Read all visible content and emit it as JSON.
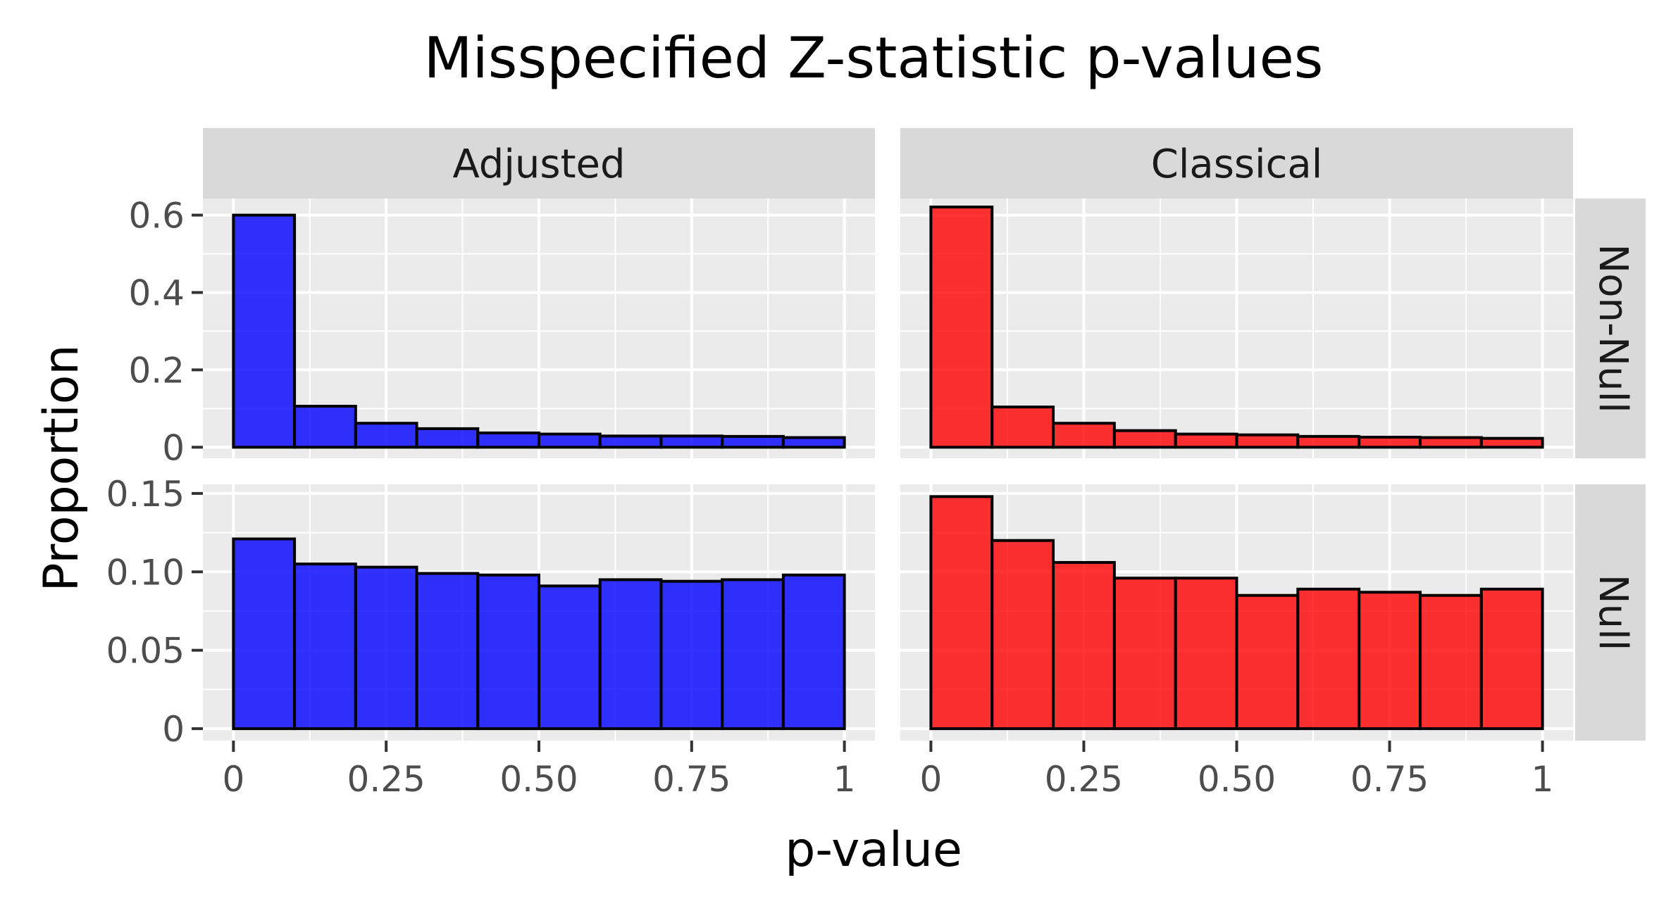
{
  "chart_data": {
    "type": "bar",
    "title": "Misspecified Z-statistic p-values",
    "xlabel": "p-value",
    "ylabel": "Proportion",
    "bin_edges": [
      0,
      0.1,
      0.2,
      0.3,
      0.4,
      0.5,
      0.6,
      0.7,
      0.8,
      0.9,
      1.0
    ],
    "xlim": [
      -0.05,
      1.05
    ],
    "x_ticks": [
      0,
      0.25,
      0.5,
      0.75,
      1
    ],
    "x_tick_labels": [
      "0",
      "0.25",
      "0.50",
      "0.75",
      "1"
    ],
    "columns": [
      "Adjusted",
      "Classical"
    ],
    "rows": [
      "Non-Null",
      "Null"
    ],
    "row_axes": [
      {
        "ylim": [
          -0.0286,
          0.6429
        ],
        "ticks": [
          0,
          0.2,
          0.4,
          0.6
        ],
        "tick_labels": [
          "0",
          "0.2",
          "0.4",
          "0.6"
        ]
      },
      {
        "ylim": [
          -0.0076,
          0.1558
        ],
        "ticks": [
          0,
          0.05,
          0.1,
          0.15
        ],
        "tick_labels": [
          "0",
          "0.05",
          "0.10",
          "0.15"
        ]
      }
    ],
    "panels": [
      {
        "row": "Non-Null",
        "column": "Adjusted",
        "color": "#0000FF",
        "values": [
          0.6,
          0.106,
          0.062,
          0.048,
          0.037,
          0.034,
          0.029,
          0.029,
          0.028,
          0.025
        ]
      },
      {
        "row": "Non-Null",
        "column": "Classical",
        "color": "#FF0000",
        "values": [
          0.621,
          0.104,
          0.062,
          0.043,
          0.034,
          0.032,
          0.028,
          0.026,
          0.025,
          0.023
        ]
      },
      {
        "row": "Null",
        "column": "Adjusted",
        "color": "#0000FF",
        "values": [
          0.121,
          0.105,
          0.103,
          0.099,
          0.098,
          0.091,
          0.095,
          0.094,
          0.095,
          0.098
        ]
      },
      {
        "row": "Null",
        "column": "Classical",
        "color": "#FF0000",
        "values": [
          0.148,
          0.12,
          0.106,
          0.096,
          0.096,
          0.085,
          0.089,
          0.087,
          0.085,
          0.089
        ]
      }
    ],
    "grid": true,
    "legend": "none"
  },
  "colors": {
    "panel_background": "#EBEBEB",
    "strip_background": "#D9D9D9",
    "gridline": "#FFFFFF",
    "bar_outline": "#000000",
    "tick_label": "#4D4D4D"
  }
}
